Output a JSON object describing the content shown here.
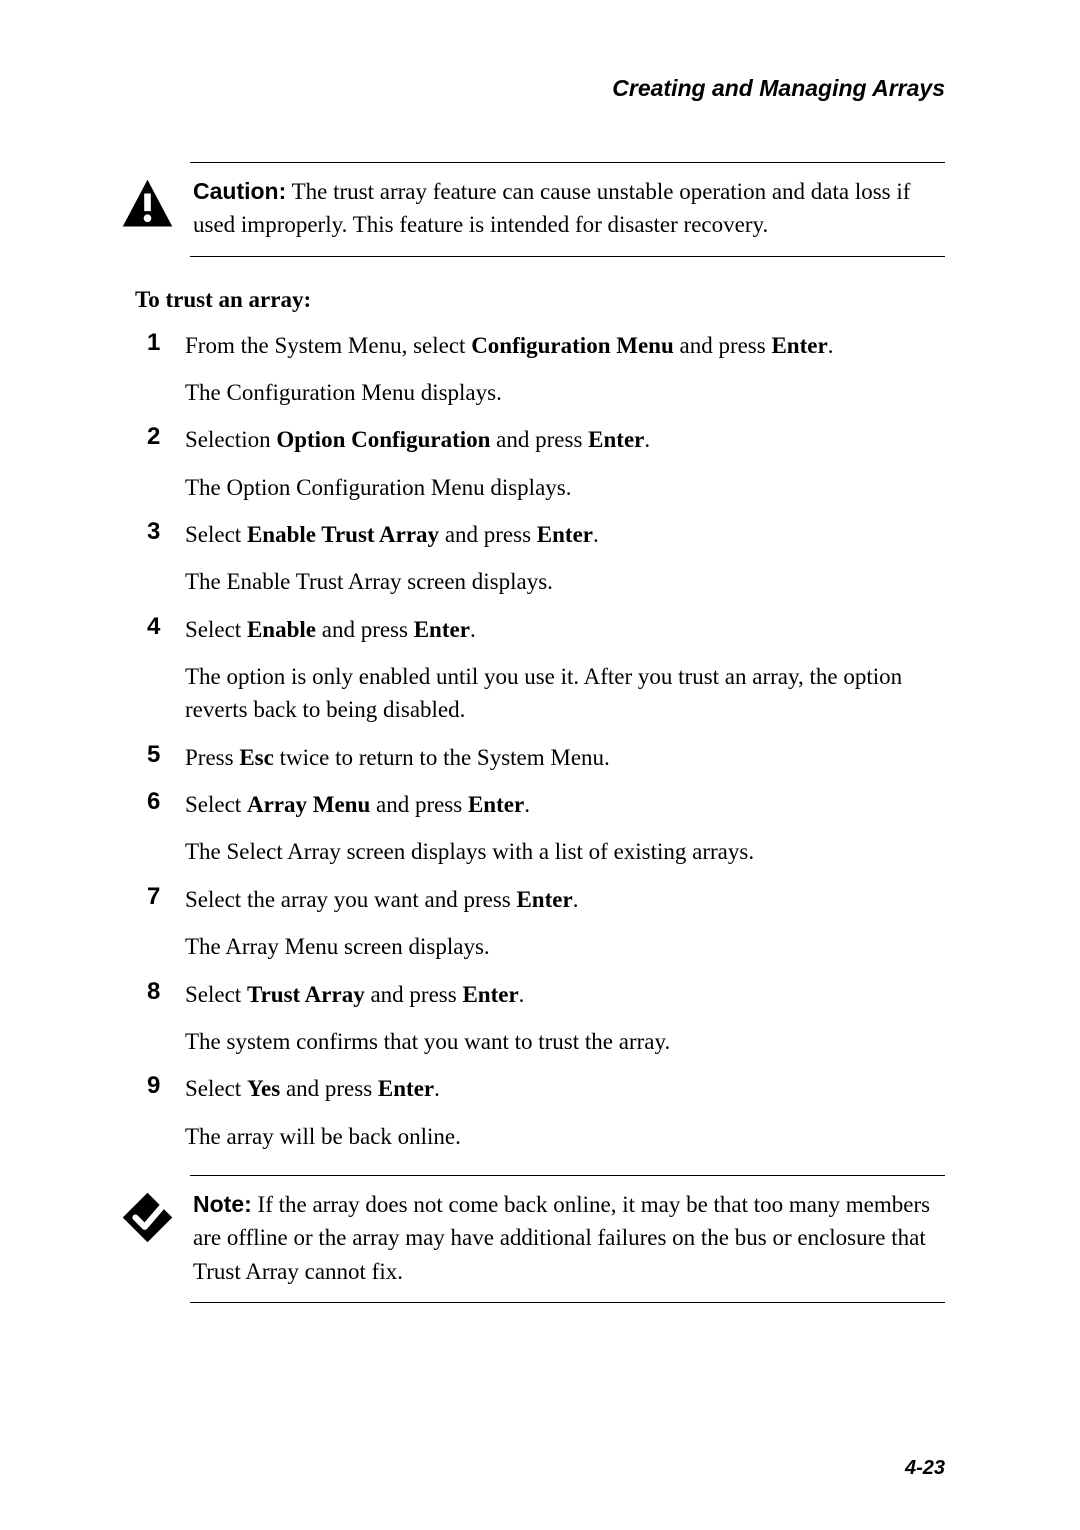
{
  "header": {
    "title": "Creating and Managing Arrays"
  },
  "caution": {
    "label": "Caution:",
    "text": " The trust array feature can cause unstable operation and data loss if used improperly. This feature is intended for disaster recovery."
  },
  "section_heading": "To trust an array:",
  "steps": [
    {
      "num": "1",
      "line1_pre": "From the System Menu, select ",
      "line1_bold1": "Configuration Menu",
      "line1_mid": " and press ",
      "line1_bold2": "Enter",
      "line1_post": ".",
      "line2": "The Configuration Menu displays."
    },
    {
      "num": "2",
      "line1_pre": "Selection ",
      "line1_bold1": "Option Configuration",
      "line1_mid": " and press ",
      "line1_bold2": "Enter",
      "line1_post": ".",
      "line2": "The Option Configuration Menu displays."
    },
    {
      "num": "3",
      "line1_pre": "Select ",
      "line1_bold1": "Enable Trust Array",
      "line1_mid": " and press ",
      "line1_bold2": "Enter",
      "line1_post": ".",
      "line2": "The Enable Trust Array screen displays."
    },
    {
      "num": "4",
      "line1_pre": "Select ",
      "line1_bold1": "Enable",
      "line1_mid": " and press ",
      "line1_bold2": "Enter",
      "line1_post": ".",
      "line2": "The option is only enabled until you use it. After you trust an array, the option reverts back to being disabled."
    },
    {
      "num": "5",
      "line1_pre": "Press ",
      "line1_bold1": "Esc",
      "line1_mid": " twice to return to the System Menu.",
      "line1_bold2": "",
      "line1_post": "",
      "line2": ""
    },
    {
      "num": "6",
      "line1_pre": "Select ",
      "line1_bold1": "Array Menu",
      "line1_mid": " and press ",
      "line1_bold2": "Enter",
      "line1_post": ".",
      "line2": "The Select Array screen displays with a list of existing arrays."
    },
    {
      "num": "7",
      "line1_pre": "Select the array you want and press ",
      "line1_bold1": "Enter",
      "line1_mid": ".",
      "line1_bold2": "",
      "line1_post": "",
      "line2": "The Array Menu screen displays."
    },
    {
      "num": "8",
      "line1_pre": "Select ",
      "line1_bold1": "Trust Array",
      "line1_mid": " and press ",
      "line1_bold2": "Enter",
      "line1_post": ".",
      "line2": "The system confirms that you want to trust the array."
    },
    {
      "num": "9",
      "line1_pre": "Select ",
      "line1_bold1": "Yes",
      "line1_mid": " and press ",
      "line1_bold2": "Enter",
      "line1_post": ".",
      "line2": "The array will be back online."
    }
  ],
  "note": {
    "label": "Note:",
    "text": " If the array does not come back online, it may be that too many members are offline or the array may have additional failures on the bus or enclosure that Trust Array cannot fix."
  },
  "page_number": "4-23"
}
